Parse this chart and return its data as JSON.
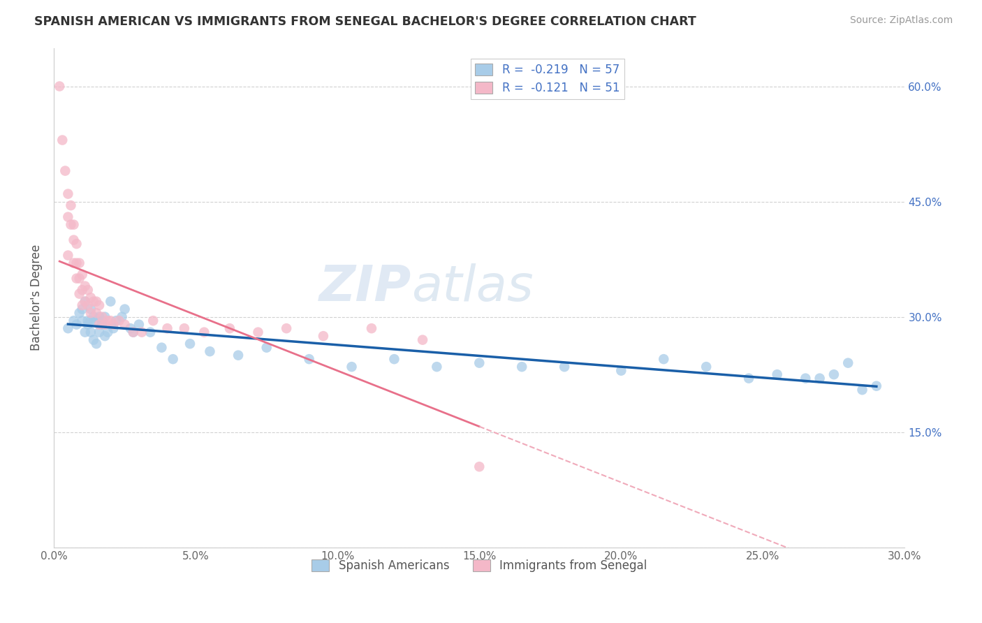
{
  "title": "SPANISH AMERICAN VS IMMIGRANTS FROM SENEGAL BACHELOR'S DEGREE CORRELATION CHART",
  "source": "Source: ZipAtlas.com",
  "ylabel": "Bachelor's Degree",
  "xlim": [
    0.0,
    0.3
  ],
  "ylim": [
    0.0,
    0.65
  ],
  "xticks": [
    0.0,
    0.05,
    0.1,
    0.15,
    0.2,
    0.25,
    0.3
  ],
  "xtick_labels": [
    "0.0%",
    "5.0%",
    "10.0%",
    "15.0%",
    "20.0%",
    "25.0%",
    "30.0%"
  ],
  "yticks": [
    0.0,
    0.15,
    0.3,
    0.45,
    0.6
  ],
  "ytick_labels_right": [
    "",
    "15.0%",
    "30.0%",
    "45.0%",
    "60.0%"
  ],
  "blue_R": -0.219,
  "blue_N": 57,
  "pink_R": -0.121,
  "pink_N": 51,
  "blue_color": "#a8cce8",
  "pink_color": "#f4b8c8",
  "blue_line_color": "#1a5fa8",
  "pink_line_color": "#e8708a",
  "pink_dash_color": "#f0aaba",
  "watermark_zip": "ZIP",
  "watermark_atlas": "atlas",
  "legend_label_blue": "Spanish Americans",
  "legend_label_pink": "Immigrants from Senegal",
  "blue_x": [
    0.005,
    0.007,
    0.008,
    0.009,
    0.01,
    0.01,
    0.011,
    0.011,
    0.012,
    0.012,
    0.013,
    0.013,
    0.013,
    0.014,
    0.014,
    0.015,
    0.015,
    0.016,
    0.016,
    0.017,
    0.017,
    0.018,
    0.018,
    0.019,
    0.02,
    0.021,
    0.022,
    0.024,
    0.025,
    0.027,
    0.028,
    0.03,
    0.034,
    0.038,
    0.042,
    0.048,
    0.055,
    0.065,
    0.075,
    0.09,
    0.105,
    0.12,
    0.135,
    0.15,
    0.165,
    0.18,
    0.2,
    0.215,
    0.23,
    0.245,
    0.255,
    0.265,
    0.27,
    0.275,
    0.28,
    0.285,
    0.29
  ],
  "blue_y": [
    0.285,
    0.295,
    0.29,
    0.305,
    0.295,
    0.31,
    0.28,
    0.32,
    0.295,
    0.29,
    0.31,
    0.295,
    0.28,
    0.3,
    0.27,
    0.295,
    0.265,
    0.3,
    0.28,
    0.295,
    0.29,
    0.3,
    0.275,
    0.28,
    0.32,
    0.285,
    0.295,
    0.3,
    0.31,
    0.285,
    0.28,
    0.29,
    0.28,
    0.26,
    0.245,
    0.265,
    0.255,
    0.25,
    0.26,
    0.245,
    0.235,
    0.245,
    0.235,
    0.24,
    0.235,
    0.235,
    0.23,
    0.245,
    0.235,
    0.22,
    0.225,
    0.22,
    0.22,
    0.225,
    0.24,
    0.205,
    0.21
  ],
  "pink_x": [
    0.002,
    0.003,
    0.004,
    0.005,
    0.005,
    0.005,
    0.006,
    0.006,
    0.007,
    0.007,
    0.007,
    0.008,
    0.008,
    0.008,
    0.009,
    0.009,
    0.009,
    0.01,
    0.01,
    0.01,
    0.011,
    0.011,
    0.012,
    0.012,
    0.013,
    0.013,
    0.014,
    0.015,
    0.015,
    0.016,
    0.016,
    0.017,
    0.018,
    0.019,
    0.02,
    0.021,
    0.023,
    0.025,
    0.028,
    0.031,
    0.035,
    0.04,
    0.046,
    0.053,
    0.062,
    0.072,
    0.082,
    0.095,
    0.112,
    0.13,
    0.15
  ],
  "pink_y": [
    0.6,
    0.53,
    0.49,
    0.46,
    0.43,
    0.38,
    0.445,
    0.42,
    0.42,
    0.4,
    0.37,
    0.395,
    0.37,
    0.35,
    0.37,
    0.35,
    0.33,
    0.355,
    0.335,
    0.315,
    0.34,
    0.32,
    0.335,
    0.315,
    0.325,
    0.305,
    0.32,
    0.32,
    0.305,
    0.315,
    0.29,
    0.3,
    0.29,
    0.295,
    0.295,
    0.29,
    0.295,
    0.29,
    0.28,
    0.28,
    0.295,
    0.285,
    0.285,
    0.28,
    0.285,
    0.28,
    0.285,
    0.275,
    0.285,
    0.27,
    0.105
  ]
}
